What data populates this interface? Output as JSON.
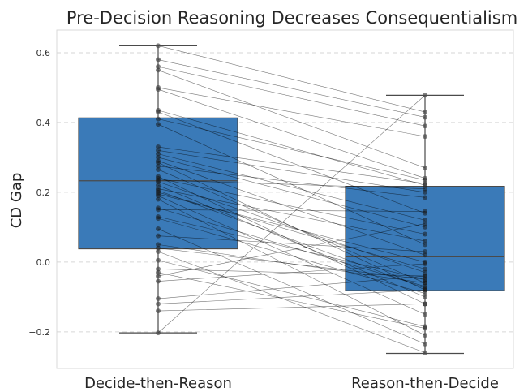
{
  "chart_data": {
    "type": "box",
    "title": "Pre-Decision Reasoning Decreases Consequentialism",
    "xlabel": "",
    "ylabel": "CD Gap",
    "ylim": [
      -0.305,
      0.665
    ],
    "yticks": [
      -0.2,
      0.0,
      0.2,
      0.4,
      0.6
    ],
    "ytick_labels": [
      "−0.2",
      "0.0",
      "0.2",
      "0.4",
      "0.6"
    ],
    "grid": "horizontal dashed",
    "categories": [
      "Decide-then-Reason",
      "Reason-then-Decide"
    ],
    "box_color": "#3a7ab8",
    "boxes": [
      {
        "category": "Decide-then-Reason",
        "whisker_low": -0.203,
        "q1": 0.038,
        "median": 0.233,
        "q3": 0.413,
        "whisker_high": 0.62
      },
      {
        "category": "Reason-then-Decide",
        "whisker_low": -0.262,
        "q1": -0.082,
        "median": 0.015,
        "q3": 0.217,
        "whisker_high": 0.478
      }
    ],
    "paired_points": [
      [
        0.62,
        0.43
      ],
      [
        0.58,
        0.415
      ],
      [
        0.56,
        0.39
      ],
      [
        0.55,
        0.27
      ],
      [
        0.5,
        0.36
      ],
      [
        0.495,
        0.24
      ],
      [
        0.435,
        0.22
      ],
      [
        0.43,
        0.14
      ],
      [
        0.41,
        0.235
      ],
      [
        0.395,
        0.05
      ],
      [
        0.33,
        0.225
      ],
      [
        0.32,
        0.2
      ],
      [
        0.31,
        0.12
      ],
      [
        0.3,
        0.1
      ],
      [
        0.29,
        0.02
      ],
      [
        0.285,
        -0.08
      ],
      [
        0.275,
        0.185
      ],
      [
        0.265,
        -0.06
      ],
      [
        0.245,
        -0.12
      ],
      [
        0.24,
        0.08
      ],
      [
        0.235,
        0.21
      ],
      [
        0.23,
        -0.03
      ],
      [
        0.22,
        -0.1
      ],
      [
        0.21,
        0.06
      ],
      [
        0.205,
        -0.075
      ],
      [
        0.2,
        -0.02
      ],
      [
        0.195,
        0.0
      ],
      [
        0.19,
        -0.15
      ],
      [
        0.18,
        -0.21
      ],
      [
        0.155,
        -0.07
      ],
      [
        0.15,
        0.145
      ],
      [
        0.13,
        -0.05
      ],
      [
        0.125,
        -0.09
      ],
      [
        0.095,
        -0.235
      ],
      [
        0.075,
        0.03
      ],
      [
        0.05,
        -0.06
      ],
      [
        0.04,
        -0.05
      ],
      [
        0.03,
        -0.26
      ],
      [
        0.005,
        -0.185
      ],
      [
        -0.02,
        -0.04
      ],
      [
        -0.03,
        -0.19
      ],
      [
        -0.04,
        0.11
      ],
      [
        -0.055,
        -0.005
      ],
      [
        -0.105,
        -0.04
      ],
      [
        -0.12,
        -0.08
      ],
      [
        -0.14,
        -0.12
      ],
      [
        -0.203,
        0.478
      ]
    ]
  }
}
